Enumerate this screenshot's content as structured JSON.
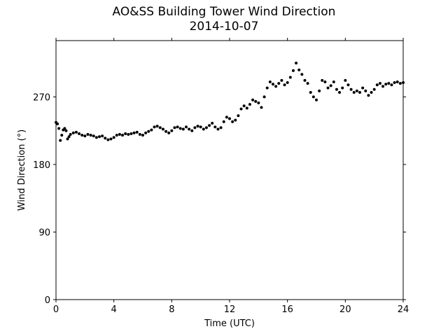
{
  "chart_data": {
    "type": "scatter",
    "title": [
      "AO&SS Building Tower Wind Direction",
      "2014-10-07"
    ],
    "xlabel": "Time (UTC)",
    "ylabel": "Wind Direction (°)",
    "xlim": [
      0,
      24
    ],
    "ylim": [
      0,
      345
    ],
    "xticks": [
      0,
      4,
      8,
      12,
      16,
      20,
      24
    ],
    "yticks": [
      0,
      90,
      180,
      270
    ],
    "grid": false,
    "marker_color": "#000000",
    "series": [
      {
        "values": [
          [
            0.0,
            236
          ],
          [
            0.1,
            234
          ],
          [
            0.2,
            228
          ],
          [
            0.3,
            212
          ],
          [
            0.4,
            219
          ],
          [
            0.5,
            226
          ],
          [
            0.6,
            228
          ],
          [
            0.7,
            225
          ],
          [
            0.8,
            214
          ],
          [
            0.9,
            217
          ],
          [
            1.0,
            220
          ],
          [
            1.2,
            222
          ],
          [
            1.4,
            223
          ],
          [
            1.6,
            221
          ],
          [
            1.8,
            219
          ],
          [
            2.0,
            218
          ],
          [
            2.2,
            220
          ],
          [
            2.4,
            219
          ],
          [
            2.6,
            218
          ],
          [
            2.8,
            216
          ],
          [
            3.0,
            217
          ],
          [
            3.2,
            218
          ],
          [
            3.4,
            215
          ],
          [
            3.6,
            213
          ],
          [
            3.8,
            214
          ],
          [
            4.0,
            216
          ],
          [
            4.2,
            219
          ],
          [
            4.4,
            220
          ],
          [
            4.6,
            219
          ],
          [
            4.8,
            221
          ],
          [
            5.0,
            220
          ],
          [
            5.2,
            221
          ],
          [
            5.4,
            222
          ],
          [
            5.6,
            223
          ],
          [
            5.8,
            220
          ],
          [
            6.0,
            219
          ],
          [
            6.2,
            222
          ],
          [
            6.4,
            224
          ],
          [
            6.6,
            226
          ],
          [
            6.8,
            230
          ],
          [
            7.0,
            231
          ],
          [
            7.2,
            229
          ],
          [
            7.4,
            227
          ],
          [
            7.6,
            224
          ],
          [
            7.8,
            222
          ],
          [
            8.0,
            225
          ],
          [
            8.2,
            229
          ],
          [
            8.4,
            230
          ],
          [
            8.6,
            228
          ],
          [
            8.8,
            227
          ],
          [
            9.0,
            230
          ],
          [
            9.2,
            227
          ],
          [
            9.4,
            225
          ],
          [
            9.6,
            229
          ],
          [
            9.8,
            231
          ],
          [
            10.0,
            230
          ],
          [
            10.2,
            227
          ],
          [
            10.4,
            229
          ],
          [
            10.6,
            232
          ],
          [
            10.8,
            235
          ],
          [
            11.0,
            230
          ],
          [
            11.2,
            227
          ],
          [
            11.4,
            229
          ],
          [
            11.6,
            237
          ],
          [
            11.8,
            243
          ],
          [
            12.0,
            241
          ],
          [
            12.2,
            237
          ],
          [
            12.4,
            239
          ],
          [
            12.6,
            245
          ],
          [
            12.8,
            254
          ],
          [
            13.0,
            258
          ],
          [
            13.2,
            255
          ],
          [
            13.4,
            260
          ],
          [
            13.6,
            266
          ],
          [
            13.8,
            264
          ],
          [
            14.0,
            262
          ],
          [
            14.2,
            256
          ],
          [
            14.4,
            270
          ],
          [
            14.6,
            282
          ],
          [
            14.8,
            290
          ],
          [
            15.0,
            287
          ],
          [
            15.2,
            284
          ],
          [
            15.4,
            288
          ],
          [
            15.6,
            292
          ],
          [
            15.8,
            286
          ],
          [
            16.0,
            289
          ],
          [
            16.2,
            296
          ],
          [
            16.4,
            305
          ],
          [
            16.6,
            315
          ],
          [
            16.8,
            306
          ],
          [
            17.0,
            300
          ],
          [
            17.2,
            292
          ],
          [
            17.4,
            288
          ],
          [
            17.6,
            276
          ],
          [
            17.8,
            270
          ],
          [
            18.0,
            266
          ],
          [
            18.2,
            278
          ],
          [
            18.4,
            292
          ],
          [
            18.6,
            290
          ],
          [
            18.8,
            282
          ],
          [
            19.0,
            285
          ],
          [
            19.2,
            290
          ],
          [
            19.4,
            280
          ],
          [
            19.6,
            276
          ],
          [
            19.8,
            282
          ],
          [
            20.0,
            292
          ],
          [
            20.2,
            286
          ],
          [
            20.4,
            280
          ],
          [
            20.6,
            276
          ],
          [
            20.8,
            278
          ],
          [
            21.0,
            276
          ],
          [
            21.2,
            282
          ],
          [
            21.4,
            278
          ],
          [
            21.6,
            272
          ],
          [
            21.8,
            276
          ],
          [
            22.0,
            280
          ],
          [
            22.2,
            286
          ],
          [
            22.4,
            288
          ],
          [
            22.6,
            284
          ],
          [
            22.8,
            287
          ],
          [
            23.0,
            288
          ],
          [
            23.2,
            286
          ],
          [
            23.4,
            289
          ],
          [
            23.6,
            290
          ],
          [
            23.8,
            288
          ],
          [
            24.0,
            289
          ]
        ]
      }
    ]
  }
}
